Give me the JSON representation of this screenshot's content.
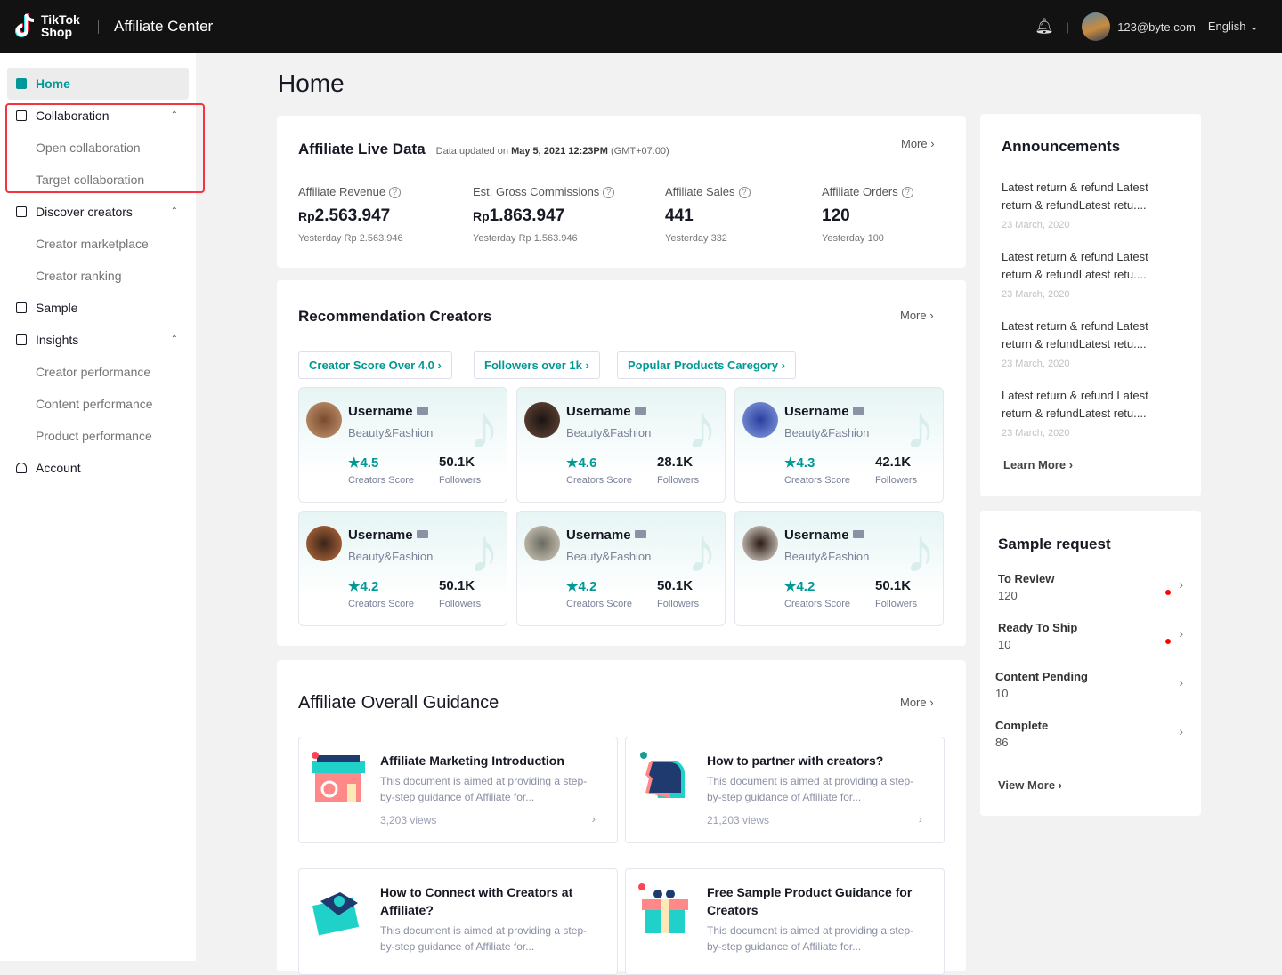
{
  "header": {
    "logo_text": "TikTok Shop",
    "title": "Affiliate Center",
    "user_email": "123@byte.com",
    "language": "English"
  },
  "sidebar": {
    "items": [
      {
        "label": "Home",
        "active": true
      },
      {
        "label": "Collaboration",
        "children": [
          "Open collaboration",
          "Target collaboration"
        ]
      },
      {
        "label": "Discover creators",
        "children": [
          "Creator marketplace",
          "Creator ranking"
        ]
      },
      {
        "label": "Sample"
      },
      {
        "label": "Insights",
        "children": [
          "Creator performance",
          "Content performance",
          "Product performance"
        ]
      },
      {
        "label": "Account"
      }
    ]
  },
  "page_title": "Home",
  "live_data": {
    "title": "Affiliate Live Data",
    "updated_prefix": "Data updated on",
    "updated_time": "May 5, 2021 12:23PM",
    "timezone": "(GMT+07:00)",
    "more": "More",
    "metrics": [
      {
        "label": "Affiliate Revenue",
        "currency": "Rp",
        "value": "2.563.947",
        "yesterday": "Yesterday Rp 2.563.946"
      },
      {
        "label": "Est. Gross Commissions",
        "currency": "Rp",
        "value": "1.863.947",
        "yesterday": "Yesterday Rp 1.563.946"
      },
      {
        "label": "Affiliate Sales",
        "currency": "",
        "value": "441",
        "yesterday": "Yesterday 332"
      },
      {
        "label": "Affiliate Orders",
        "currency": "",
        "value": "120",
        "yesterday": "Yesterday 100"
      }
    ]
  },
  "recommendation": {
    "title": "Recommendation Creators",
    "more": "More",
    "filters": [
      "Creator Score Over 4.0",
      "Followers over 1k",
      "Popular Products Caregory"
    ],
    "score_label": "Creators Score",
    "followers_label": "Followers",
    "creators": [
      {
        "name": "Username",
        "category": "Beauty&Fashion",
        "score": "4.5",
        "followers": "50.1K"
      },
      {
        "name": "Username",
        "category": "Beauty&Fashion",
        "score": "4.6",
        "followers": "28.1K"
      },
      {
        "name": "Username",
        "category": "Beauty&Fashion",
        "score": "4.3",
        "followers": "42.1K"
      },
      {
        "name": "Username",
        "category": "Beauty&Fashion",
        "score": "4.2",
        "followers": "50.1K"
      },
      {
        "name": "Username",
        "category": "Beauty&Fashion",
        "score": "4.2",
        "followers": "50.1K"
      },
      {
        "name": "Username",
        "category": "Beauty&Fashion",
        "score": "4.2",
        "followers": "50.1K"
      }
    ]
  },
  "guidance": {
    "title": "Affiliate Overall Guidance",
    "more": "More",
    "items": [
      {
        "title": "Affiliate Marketing Introduction",
        "desc": "This document is aimed at providing a step-by-step guidance of Affiliate for...",
        "views": "3,203 views"
      },
      {
        "title": "How to partner with creators?",
        "desc": "This document is aimed at providing a step-by-step guidance of Affiliate for...",
        "views": "21,203 views"
      },
      {
        "title": "How to Connect with Creators at Affiliate?",
        "desc": "This document is aimed at providing a step-by-step guidance of Affiliate for..."
      },
      {
        "title": "Free Sample Product Guidance for Creators",
        "desc": "This document is aimed at providing a step-by-step guidance of Affiliate for..."
      }
    ]
  },
  "announcements": {
    "title": "Announcements",
    "learn_more": "Learn More",
    "items": [
      {
        "text": "Latest return & refund Latest return & refundLatest retu....",
        "date": "23 March, 2020"
      },
      {
        "text": "Latest return & refund Latest return & refundLatest retu....",
        "date": "23 March, 2020"
      },
      {
        "text": "Latest return & refund Latest return & refundLatest retu....",
        "date": "23 March, 2020"
      },
      {
        "text": "Latest return & refund Latest return & refundLatest retu....",
        "date": "23 March, 2020"
      }
    ]
  },
  "sample_request": {
    "title": "Sample request",
    "view_more": "View More",
    "items": [
      {
        "label": "To Review",
        "count": "120",
        "alert": true
      },
      {
        "label": "Ready To Ship",
        "count": "10",
        "alert": true
      },
      {
        "label": "Content Pending",
        "count": "10",
        "alert": false
      },
      {
        "label": "Complete",
        "count": "86",
        "alert": false
      }
    ]
  },
  "colors": {
    "accent": "#009995",
    "header_bg": "#121212",
    "highlight": "#f5333f",
    "alert": "#ff0000"
  }
}
